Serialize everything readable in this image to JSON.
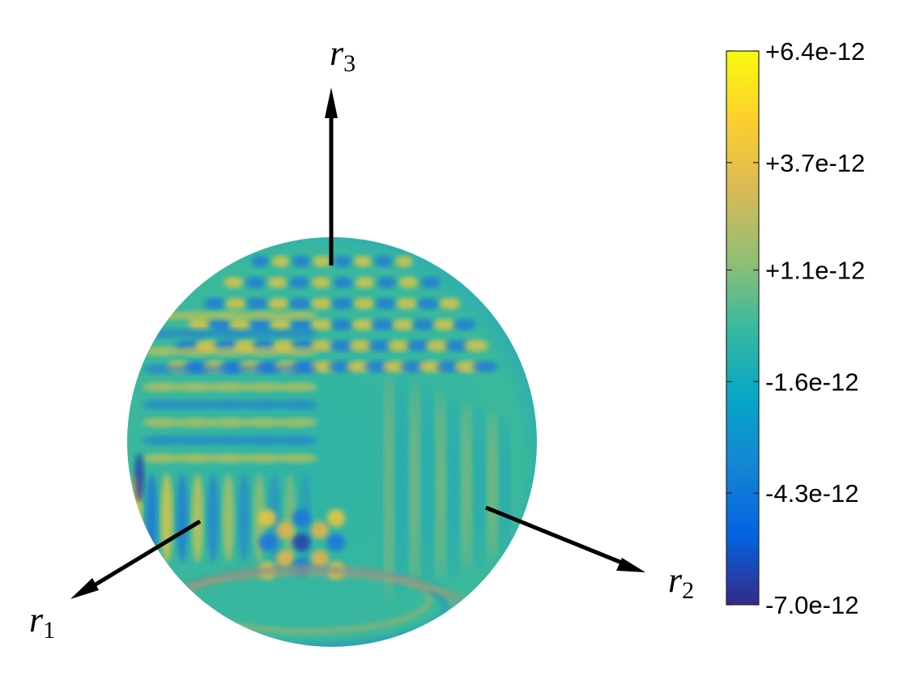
{
  "chart_data": {
    "type": "heatmap",
    "plot_kind": "3d-sphere-surface",
    "axes": [
      {
        "name": "r1",
        "symbol": "r",
        "subscript": "1"
      },
      {
        "name": "r2",
        "symbol": "r",
        "subscript": "2"
      },
      {
        "name": "r3",
        "symbol": "r",
        "subscript": "3"
      }
    ],
    "colorbar": {
      "colormap": "parula",
      "range": [
        -7e-12,
        6.4e-12
      ],
      "ticks": [
        {
          "value": 6.4e-12,
          "label": "+6.4e-12"
        },
        {
          "value": 3.7e-12,
          "label": "+3.7e-12"
        },
        {
          "value": 1.1e-12,
          "label": "+1.1e-12"
        },
        {
          "value": -1.6e-12,
          "label": "-1.6e-12"
        },
        {
          "value": -4.3e-12,
          "label": "-4.3e-12"
        },
        {
          "value": -7e-12,
          "label": "-7.0e-12"
        }
      ],
      "colors": [
        "#352a87",
        "#0363e1",
        "#1485d4",
        "#06a7c6",
        "#38b99e",
        "#92bf73",
        "#d9ba56",
        "#fcce2e",
        "#f9fb0e"
      ]
    },
    "grid": false,
    "legend": "none"
  }
}
